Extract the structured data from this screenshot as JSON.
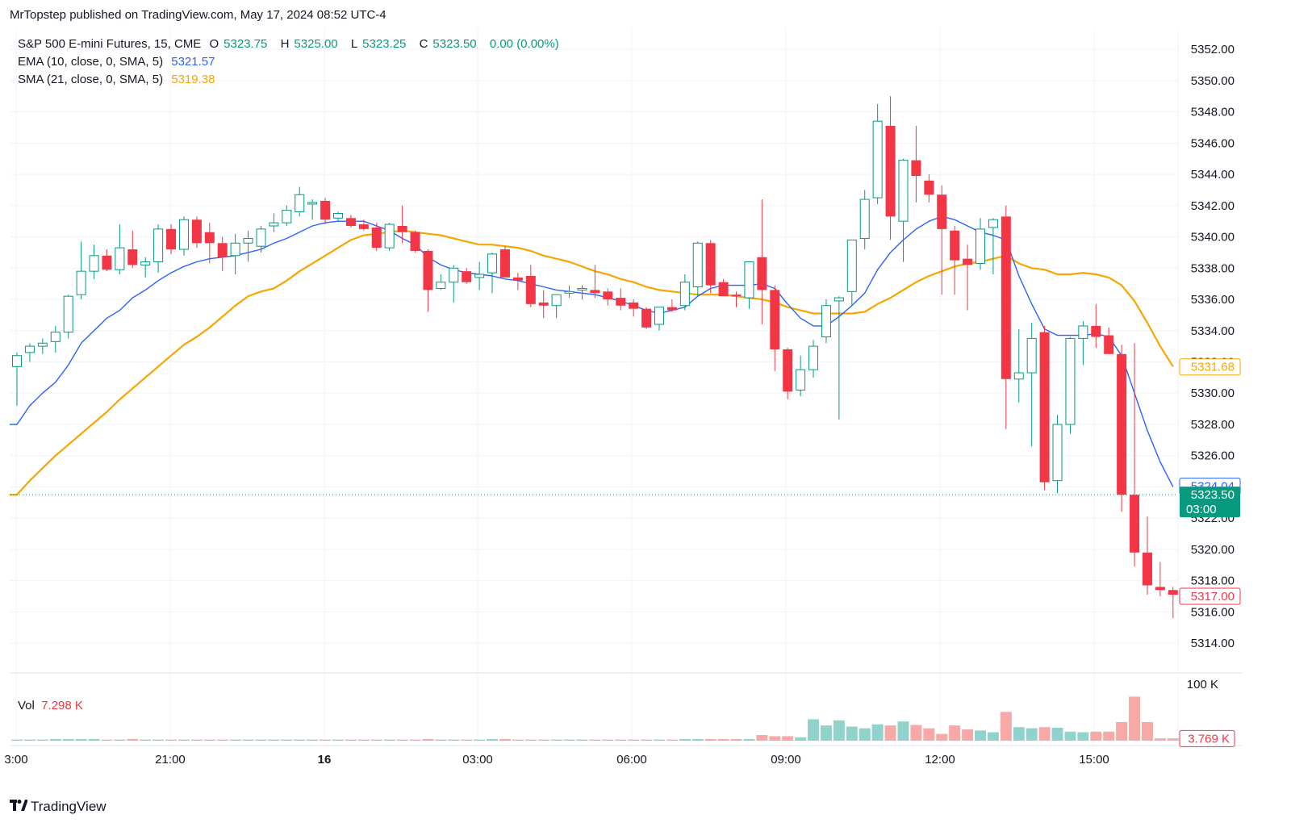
{
  "publisher_line": "MrTopstep published on TradingView.com, May 17, 2024 08:52 UTC-4",
  "legend": {
    "symbol": "S&P 500 E-mini Futures, 15, CME",
    "o_label": "O",
    "o_val": "5323.75",
    "h_label": "H",
    "h_val": "5325.00",
    "l_label": "L",
    "l_val": "5323.25",
    "c_label": "C",
    "c_val": "5323.50",
    "change": "0.00 (0.00%)",
    "ema_label": "EMA (10, close, 0, SMA, 5)",
    "ema_val": "5321.57",
    "sma_label": "SMA (21, close, 0, SMA, 5)",
    "sma_val": "5319.38"
  },
  "volume_legend": {
    "label": "Vol",
    "value": "7.298 K"
  },
  "price_tags": {
    "sma": "5331.68",
    "ema": "5324.04",
    "last": "5323.50",
    "countdown": "03:00",
    "prev": "5317.00",
    "volume": "3.769 K"
  },
  "brand": "TradingView",
  "colors": {
    "up": "#089981",
    "down": "#f23645",
    "vol_up": "#92d2cc",
    "vol_down": "#f7a9a7",
    "ema": "#2962ff",
    "sma": "#f7a600",
    "grid": "#f0f3fa"
  },
  "chart_data": {
    "type": "candlestick",
    "interval": "15",
    "y_axis": {
      "ticks": [
        "5352.00",
        "5350.00",
        "5348.00",
        "5346.00",
        "5344.00",
        "5342.00",
        "5340.00",
        "5338.00",
        "5336.00",
        "5334.00",
        "5332.00",
        "5330.00",
        "5328.00",
        "5326.00",
        "5324.00",
        "5322.00",
        "5320.00",
        "5318.00",
        "5316.00",
        "5314.00"
      ],
      "range": [
        5312.2,
        5353.4
      ]
    },
    "x_axis": {
      "ticks": [
        "3:00",
        "21:00",
        "16",
        "03:00",
        "06:00",
        "09:00",
        "12:00",
        "15:00"
      ],
      "bold_tick": "16"
    },
    "volume_axis": {
      "ticks": [
        "100 K"
      ],
      "range": [
        0,
        100
      ]
    },
    "candles": [
      {
        "o": 5331.7,
        "h": 5332.6,
        "l": 5329.2,
        "c": 5332.4,
        "v": 2
      },
      {
        "o": 5332.6,
        "h": 5333.2,
        "l": 5332.0,
        "c": 5333.0,
        "v": 2
      },
      {
        "o": 5333.0,
        "h": 5333.5,
        "l": 5332.5,
        "c": 5333.2,
        "v": 2
      },
      {
        "o": 5333.3,
        "h": 5334.3,
        "l": 5332.6,
        "c": 5333.9,
        "v": 3
      },
      {
        "o": 5333.9,
        "h": 5336.3,
        "l": 5333.5,
        "c": 5336.2,
        "v": 3
      },
      {
        "o": 5336.3,
        "h": 5339.7,
        "l": 5336.0,
        "c": 5337.8,
        "v": 3
      },
      {
        "o": 5337.8,
        "h": 5339.5,
        "l": 5337.3,
        "c": 5338.8,
        "v": 3
      },
      {
        "o": 5338.8,
        "h": 5339.2,
        "l": 5337.8,
        "c": 5337.9,
        "v": 2
      },
      {
        "o": 5337.9,
        "h": 5340.8,
        "l": 5337.6,
        "c": 5339.3,
        "v": 2
      },
      {
        "o": 5339.2,
        "h": 5340.4,
        "l": 5338.0,
        "c": 5338.2,
        "v": 3
      },
      {
        "o": 5338.2,
        "h": 5338.7,
        "l": 5337.4,
        "c": 5338.4,
        "v": 2
      },
      {
        "o": 5338.4,
        "h": 5340.8,
        "l": 5337.7,
        "c": 5340.5,
        "v": 2
      },
      {
        "o": 5340.5,
        "h": 5340.8,
        "l": 5338.9,
        "c": 5339.2,
        "v": 2
      },
      {
        "o": 5339.2,
        "h": 5341.3,
        "l": 5338.8,
        "c": 5341.1,
        "v": 2
      },
      {
        "o": 5341.1,
        "h": 5341.3,
        "l": 5339.3,
        "c": 5339.6,
        "v": 2
      },
      {
        "o": 5340.3,
        "h": 5340.9,
        "l": 5338.3,
        "c": 5339.6,
        "v": 2
      },
      {
        "o": 5339.6,
        "h": 5340.0,
        "l": 5337.8,
        "c": 5338.7,
        "v": 2
      },
      {
        "o": 5338.8,
        "h": 5340.2,
        "l": 5337.6,
        "c": 5339.6,
        "v": 2
      },
      {
        "o": 5339.6,
        "h": 5340.4,
        "l": 5338.4,
        "c": 5339.9,
        "v": 2
      },
      {
        "o": 5339.4,
        "h": 5340.7,
        "l": 5339.0,
        "c": 5340.5,
        "v": 2
      },
      {
        "o": 5340.7,
        "h": 5341.5,
        "l": 5340.3,
        "c": 5340.9,
        "v": 2
      },
      {
        "o": 5340.9,
        "h": 5342.0,
        "l": 5340.7,
        "c": 5341.7,
        "v": 2
      },
      {
        "o": 5341.6,
        "h": 5343.2,
        "l": 5341.3,
        "c": 5342.7,
        "v": 2
      },
      {
        "o": 5342.2,
        "h": 5342.4,
        "l": 5341.1,
        "c": 5342.2,
        "v": 2
      },
      {
        "o": 5342.3,
        "h": 5342.5,
        "l": 5340.8,
        "c": 5341.1,
        "v": 2
      },
      {
        "o": 5341.2,
        "h": 5341.6,
        "l": 5341.0,
        "c": 5341.5,
        "v": 2
      },
      {
        "o": 5341.2,
        "h": 5341.4,
        "l": 5340.6,
        "c": 5340.7,
        "v": 2
      },
      {
        "o": 5340.8,
        "h": 5341.1,
        "l": 5340.4,
        "c": 5340.5,
        "v": 2
      },
      {
        "o": 5340.6,
        "h": 5340.9,
        "l": 5339.1,
        "c": 5339.3,
        "v": 2
      },
      {
        "o": 5339.3,
        "h": 5340.9,
        "l": 5339.1,
        "c": 5340.8,
        "v": 2
      },
      {
        "o": 5340.7,
        "h": 5342.0,
        "l": 5339.6,
        "c": 5340.3,
        "v": 2
      },
      {
        "o": 5340.3,
        "h": 5340.4,
        "l": 5339.0,
        "c": 5339.1,
        "v": 2
      },
      {
        "o": 5339.1,
        "h": 5339.2,
        "l": 5335.2,
        "c": 5336.6,
        "v": 3
      },
      {
        "o": 5336.7,
        "h": 5337.6,
        "l": 5336.6,
        "c": 5337.1,
        "v": 2
      },
      {
        "o": 5337.1,
        "h": 5338.2,
        "l": 5335.8,
        "c": 5338.0,
        "v": 2
      },
      {
        "o": 5337.8,
        "h": 5338.0,
        "l": 5337.0,
        "c": 5337.1,
        "v": 2
      },
      {
        "o": 5337.4,
        "h": 5338.4,
        "l": 5336.6,
        "c": 5337.6,
        "v": 2
      },
      {
        "o": 5337.7,
        "h": 5339.0,
        "l": 5336.4,
        "c": 5338.9,
        "v": 3
      },
      {
        "o": 5339.2,
        "h": 5339.4,
        "l": 5337.4,
        "c": 5337.4,
        "v": 3
      },
      {
        "o": 5337.4,
        "h": 5337.7,
        "l": 5336.6,
        "c": 5337.2,
        "v": 2
      },
      {
        "o": 5337.5,
        "h": 5338.2,
        "l": 5335.5,
        "c": 5335.7,
        "v": 2
      },
      {
        "o": 5335.8,
        "h": 5336.6,
        "l": 5334.8,
        "c": 5335.6,
        "v": 2
      },
      {
        "o": 5335.6,
        "h": 5336.3,
        "l": 5334.8,
        "c": 5336.3,
        "v": 2
      },
      {
        "o": 5336.4,
        "h": 5336.9,
        "l": 5336.1,
        "c": 5336.5,
        "v": 2
      },
      {
        "o": 5336.6,
        "h": 5336.9,
        "l": 5336.0,
        "c": 5336.7,
        "v": 2
      },
      {
        "o": 5336.6,
        "h": 5338.2,
        "l": 5336.1,
        "c": 5336.4,
        "v": 2
      },
      {
        "o": 5336.5,
        "h": 5336.7,
        "l": 5335.6,
        "c": 5336.0,
        "v": 2
      },
      {
        "o": 5336.1,
        "h": 5336.7,
        "l": 5335.3,
        "c": 5335.6,
        "v": 2
      },
      {
        "o": 5335.8,
        "h": 5336.0,
        "l": 5334.9,
        "c": 5335.4,
        "v": 2
      },
      {
        "o": 5335.4,
        "h": 5335.5,
        "l": 5334.1,
        "c": 5334.2,
        "v": 2
      },
      {
        "o": 5334.4,
        "h": 5335.5,
        "l": 5334.0,
        "c": 5335.5,
        "v": 2
      },
      {
        "o": 5335.5,
        "h": 5336.0,
        "l": 5335.2,
        "c": 5335.3,
        "v": 2
      },
      {
        "o": 5335.6,
        "h": 5337.6,
        "l": 5335.3,
        "c": 5337.1,
        "v": 3
      },
      {
        "o": 5336.8,
        "h": 5339.7,
        "l": 5336.2,
        "c": 5339.6,
        "v": 3
      },
      {
        "o": 5339.6,
        "h": 5339.8,
        "l": 5336.4,
        "c": 5336.9,
        "v": 3
      },
      {
        "o": 5337.1,
        "h": 5337.3,
        "l": 5336.2,
        "c": 5336.2,
        "v": 3
      },
      {
        "o": 5336.3,
        "h": 5336.5,
        "l": 5335.5,
        "c": 5336.2,
        "v": 3
      },
      {
        "o": 5336.1,
        "h": 5338.4,
        "l": 5335.4,
        "c": 5338.4,
        "v": 3
      },
      {
        "o": 5338.7,
        "h": 5342.4,
        "l": 5334.4,
        "c": 5336.6,
        "v": 10
      },
      {
        "o": 5336.6,
        "h": 5336.9,
        "l": 5331.4,
        "c": 5332.8,
        "v": 8
      },
      {
        "o": 5332.8,
        "h": 5332.9,
        "l": 5329.6,
        "c": 5330.1,
        "v": 8
      },
      {
        "o": 5330.2,
        "h": 5332.4,
        "l": 5329.8,
        "c": 5331.5,
        "v": 6
      },
      {
        "o": 5331.5,
        "h": 5333.4,
        "l": 5331.0,
        "c": 5333.0,
        "v": 38
      },
      {
        "o": 5333.6,
        "h": 5336.0,
        "l": 5333.2,
        "c": 5335.6,
        "v": 27
      },
      {
        "o": 5335.9,
        "h": 5336.2,
        "l": 5328.3,
        "c": 5336.1,
        "v": 36
      },
      {
        "o": 5336.5,
        "h": 5339.8,
        "l": 5335.6,
        "c": 5339.8,
        "v": 25
      },
      {
        "o": 5339.9,
        "h": 5343.0,
        "l": 5339.2,
        "c": 5342.4,
        "v": 22
      },
      {
        "o": 5342.5,
        "h": 5348.5,
        "l": 5342.1,
        "c": 5347.4,
        "v": 29
      },
      {
        "o": 5347.1,
        "h": 5349.0,
        "l": 5339.8,
        "c": 5341.3,
        "v": 27
      },
      {
        "o": 5341.0,
        "h": 5345.0,
        "l": 5338.4,
        "c": 5344.9,
        "v": 34
      },
      {
        "o": 5344.9,
        "h": 5347.1,
        "l": 5342.2,
        "c": 5343.9,
        "v": 28
      },
      {
        "o": 5343.6,
        "h": 5344.0,
        "l": 5342.2,
        "c": 5342.7,
        "v": 22
      },
      {
        "o": 5342.7,
        "h": 5343.3,
        "l": 5336.3,
        "c": 5340.5,
        "v": 12
      },
      {
        "o": 5340.4,
        "h": 5340.7,
        "l": 5336.3,
        "c": 5338.5,
        "v": 27
      },
      {
        "o": 5338.6,
        "h": 5339.5,
        "l": 5335.3,
        "c": 5338.2,
        "v": 20
      },
      {
        "o": 5338.3,
        "h": 5341.2,
        "l": 5337.9,
        "c": 5340.5,
        "v": 18
      },
      {
        "o": 5340.6,
        "h": 5341.2,
        "l": 5337.6,
        "c": 5341.1,
        "v": 15
      },
      {
        "o": 5341.3,
        "h": 5342.0,
        "l": 5327.7,
        "c": 5330.9,
        "v": 51
      },
      {
        "o": 5330.9,
        "h": 5334.1,
        "l": 5329.4,
        "c": 5331.3,
        "v": 24
      },
      {
        "o": 5331.3,
        "h": 5334.5,
        "l": 5326.6,
        "c": 5333.5,
        "v": 22
      },
      {
        "o": 5333.9,
        "h": 5334.3,
        "l": 5323.8,
        "c": 5324.3,
        "v": 24
      },
      {
        "o": 5324.4,
        "h": 5328.6,
        "l": 5323.6,
        "c": 5328.0,
        "v": 23
      },
      {
        "o": 5328.0,
        "h": 5333.6,
        "l": 5327.4,
        "c": 5333.5,
        "v": 16
      },
      {
        "o": 5333.5,
        "h": 5334.6,
        "l": 5331.8,
        "c": 5334.3,
        "v": 15
      },
      {
        "o": 5334.3,
        "h": 5335.7,
        "l": 5332.9,
        "c": 5333.6,
        "v": 16
      },
      {
        "o": 5333.7,
        "h": 5334.2,
        "l": 5332.5,
        "c": 5332.5,
        "v": 16
      },
      {
        "o": 5332.5,
        "h": 5333.1,
        "l": 5322.4,
        "c": 5323.5,
        "v": 33
      },
      {
        "o": 5323.5,
        "h": 5333.2,
        "l": 5318.9,
        "c": 5319.8,
        "v": 78
      },
      {
        "o": 5319.8,
        "h": 5322.1,
        "l": 5317.1,
        "c": 5317.7,
        "v": 33
      },
      {
        "o": 5317.6,
        "h": 5319.2,
        "l": 5317.0,
        "c": 5317.4,
        "v": 4
      },
      {
        "o": 5317.4,
        "h": 5317.6,
        "l": 5315.6,
        "c": 5317.1,
        "v": 4
      }
    ],
    "ema": [
      5328.0,
      5329.2,
      5330.0,
      5330.7,
      5331.8,
      5333.2,
      5334.0,
      5334.8,
      5335.3,
      5336.1,
      5336.6,
      5337.2,
      5337.7,
      5338.1,
      5338.4,
      5338.6,
      5338.7,
      5338.8,
      5339.0,
      5339.2,
      5339.6,
      5339.9,
      5340.3,
      5340.7,
      5340.9,
      5341.0,
      5341.0,
      5341.0,
      5340.7,
      5340.4,
      5339.9,
      5339.5,
      5338.7,
      5338.2,
      5337.9,
      5337.7,
      5337.6,
      5337.5,
      5337.3,
      5337.2,
      5337.0,
      5336.8,
      5336.6,
      5336.5,
      5336.4,
      5336.3,
      5336.1,
      5335.9,
      5335.6,
      5335.3,
      5335.1,
      5335.3,
      5335.5,
      5336.2,
      5336.7,
      5336.9,
      5336.9,
      5336.9,
      5337.0,
      5336.7,
      5335.7,
      5334.8,
      5334.3,
      5334.3,
      5334.9,
      5335.6,
      5336.4,
      5337.9,
      5339.0,
      5339.8,
      5340.5,
      5341.0,
      5341.3,
      5341.1,
      5340.7,
      5340.3,
      5340.1,
      5339.8,
      5337.5,
      5335.7,
      5334.1,
      5333.7,
      5333.7,
      5333.7,
      5333.8,
      5333.6,
      5332.4,
      5330.0,
      5327.6,
      5325.6,
      5324.0
    ],
    "sma": [
      5323.5,
      5324.4,
      5325.2,
      5326.0,
      5326.7,
      5327.4,
      5328.1,
      5328.8,
      5329.6,
      5330.3,
      5331.0,
      5331.7,
      5332.4,
      5333.1,
      5333.6,
      5334.2,
      5334.9,
      5335.6,
      5336.2,
      5336.5,
      5336.7,
      5337.2,
      5337.8,
      5338.3,
      5338.8,
      5339.3,
      5339.8,
      5340.1,
      5340.2,
      5340.3,
      5340.4,
      5340.3,
      5340.2,
      5340.1,
      5339.9,
      5339.7,
      5339.5,
      5339.5,
      5339.4,
      5339.3,
      5339.1,
      5338.8,
      5338.6,
      5338.4,
      5338.1,
      5337.8,
      5337.6,
      5337.3,
      5337.1,
      5336.8,
      5336.6,
      5336.5,
      5336.4,
      5336.3,
      5336.3,
      5336.3,
      5336.2,
      5336.1,
      5336.0,
      5335.8,
      5335.5,
      5335.3,
      5335.1,
      5335.1,
      5335.1,
      5335.1,
      5335.2,
      5335.7,
      5336.1,
      5336.6,
      5337.1,
      5337.5,
      5337.8,
      5338.1,
      5338.3,
      5338.4,
      5338.6,
      5338.8,
      5338.3,
      5338.0,
      5337.9,
      5337.6,
      5337.6,
      5337.7,
      5337.6,
      5337.4,
      5336.9,
      5335.9,
      5334.5,
      5333.0,
      5331.7
    ]
  }
}
